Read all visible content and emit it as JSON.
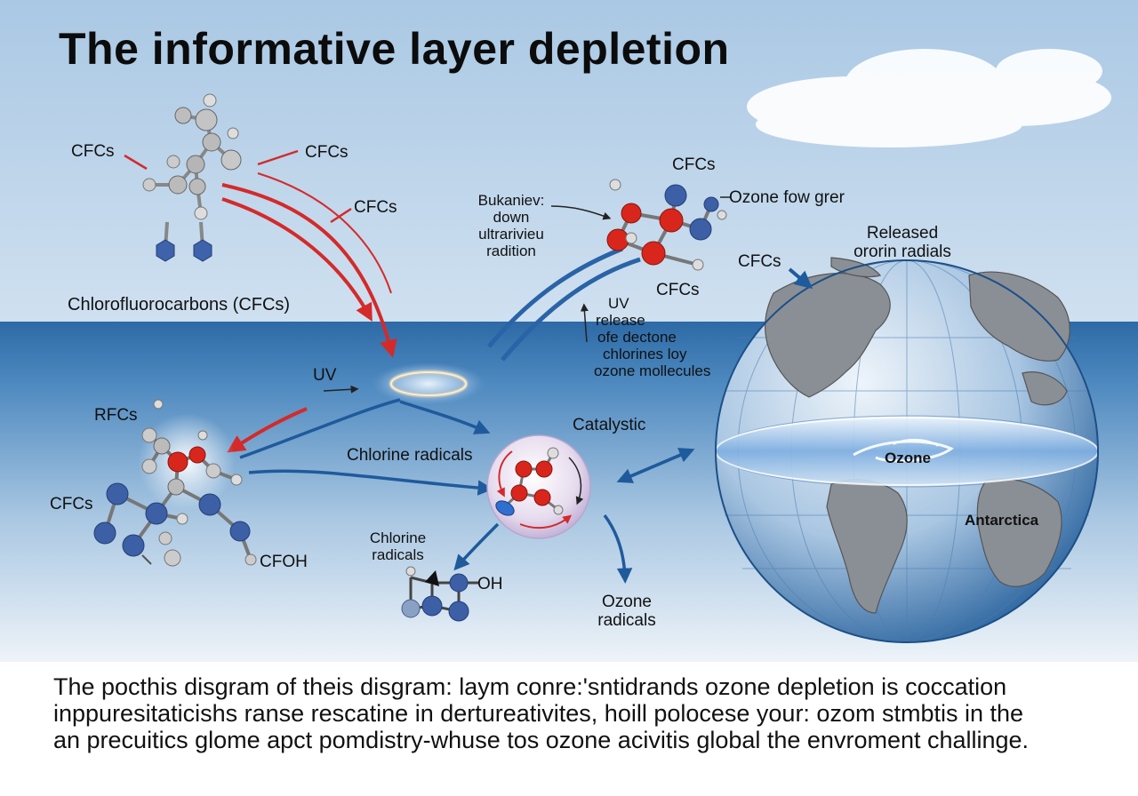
{
  "title": "The informative layer depletion",
  "labels": {
    "cfcs_top_left": "CFCs",
    "cfcs_top_mid": "CFCs",
    "cfcs_mid": "CFCs",
    "cfcs_molecule_top": "CFCs",
    "cfcs_molecule_bottom": "CFCs",
    "cfcs_globe": "CFCs",
    "cfcs_left": "CFCs",
    "chlorofluorocarbons": "Chlorofluorocarbons (CFCs)",
    "breakdown_line1": "Bukaniev:",
    "breakdown_line2": "down",
    "breakdown_line3": "ultrarivieu",
    "breakdown_line4": "radition",
    "ozone_few": "Ozone fow grer",
    "released_line1": "Released",
    "released_line2": "ororin radials",
    "uv_left": "UV",
    "uv_release_line1": "UV",
    "uv_release_line2": "release",
    "uv_release_line3": "ofe dectone",
    "uv_release_line4": "chlorines loy",
    "uv_release_line5": "ozone mollecules",
    "rfcs": "RFCs",
    "chlorine_radicals": "Chlorine radicals",
    "catalystic": "Catalystic",
    "cfoh": "CFOH",
    "chlorine_radicals_2_line1": "Chlorine",
    "chlorine_radicals_2_line2": "radicals",
    "oh": "OH",
    "ozone_radicals_line1": "Ozone",
    "ozone_radicals_line2": "radicals",
    "ozone_globe": "Ozone",
    "antarctica": "Antarctica"
  },
  "caption": {
    "line1": "The pocthis disgram of theis disgram: laym conre:'sntidrands ozone depletion is coccation",
    "line2": "inppuresitaticishs ranse rescatine in dertureativites, hoill polocese your: ozom stmbtis in the",
    "line3": "an precuitics glome apct pomdistry-whuse tos ozone acivitis global the envroment challinge."
  },
  "colors": {
    "sky_top": "#b9d3ea",
    "sky_light": "#eaf2f8",
    "band": "#2f6ea8",
    "arrow_red": "#d42a2a",
    "arrow_blue": "#1f5a9c",
    "atom_red": "#d9261c",
    "atom_blue": "#3c5fa6",
    "atom_gray": "#b8b8b8"
  }
}
